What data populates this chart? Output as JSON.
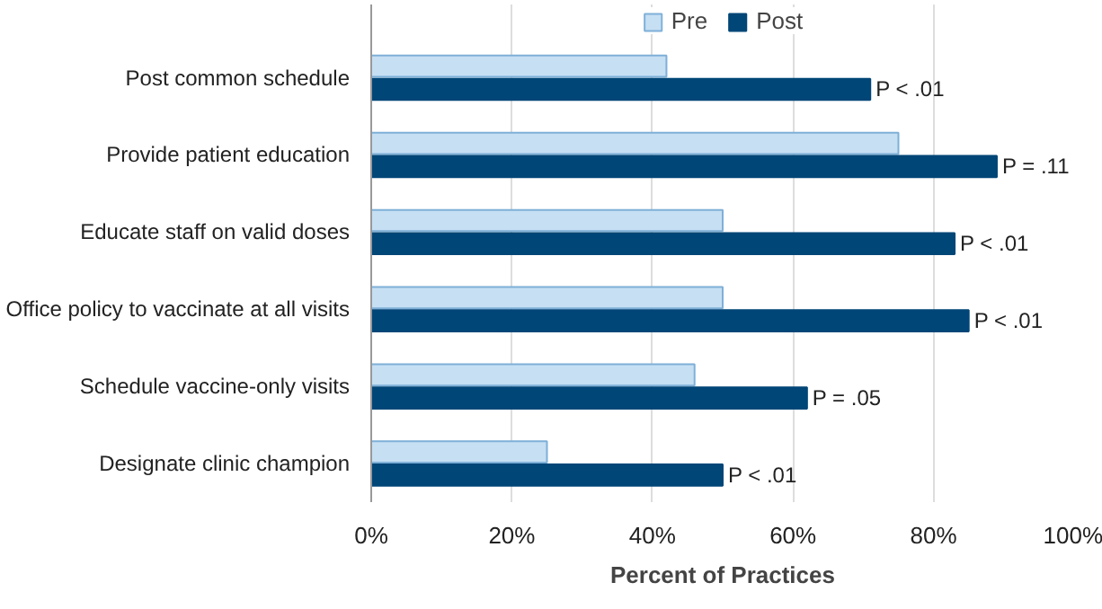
{
  "chart_data": {
    "type": "bar",
    "orientation": "horizontal",
    "xlabel": "Percent of Practices",
    "categories": [
      "Post common schedule",
      "Provide patient education",
      "Educate staff on valid doses",
      "Office policy to vaccinate at all visits",
      "Schedule vaccine-only visits",
      "Designate clinic champion"
    ],
    "series": [
      {
        "name": "Pre",
        "color": "#c6dff3",
        "values": [
          42,
          75,
          50,
          50,
          46,
          25
        ]
      },
      {
        "name": "Post",
        "color": "#004677",
        "values": [
          71,
          89,
          83,
          85,
          62,
          50
        ]
      }
    ],
    "xlim": [
      0,
      100
    ],
    "xticks": [
      {
        "value": 0,
        "label": "0%"
      },
      {
        "value": 20,
        "label": "20%"
      },
      {
        "value": 40,
        "label": "40%"
      },
      {
        "value": 60,
        "label": "60%"
      },
      {
        "value": 80,
        "label": "80%"
      },
      {
        "value": 100,
        "label": "100%"
      }
    ],
    "grid": "x",
    "legend": "top",
    "annotations": [
      {
        "text": "P < .01",
        "x": 71,
        "y": "Post common schedule"
      },
      {
        "text": "P = .11",
        "x": 89,
        "y": "Provide patient education"
      },
      {
        "text": "P < .01",
        "x": 83,
        "y": "Educate staff on valid doses"
      },
      {
        "text": "P < .01",
        "x": 85,
        "y": "Office policy to vaccinate at all visits"
      },
      {
        "text": "P = .05",
        "x": 62,
        "y": "Schedule vaccine-only visits"
      },
      {
        "text": "P < .01",
        "x": 50,
        "y": "Designate clinic champion"
      }
    ]
  }
}
